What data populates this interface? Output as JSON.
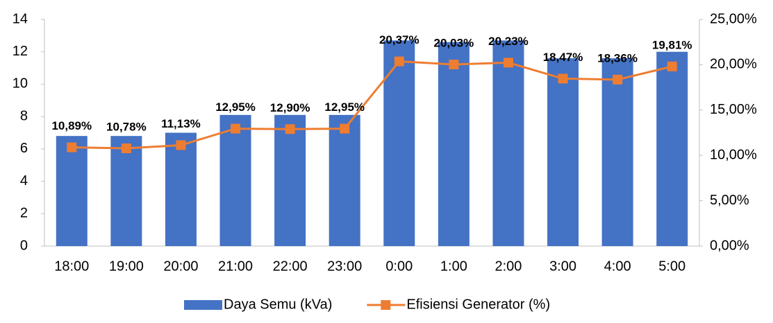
{
  "chart_data": {
    "type": "bar_line",
    "categories": [
      "18:00",
      "19:00",
      "20:00",
      "21:00",
      "22:00",
      "23:00",
      "0:00",
      "1:00",
      "2:00",
      "3:00",
      "4:00",
      "5:00"
    ],
    "series": [
      {
        "name": "Daya Semu (kVa)",
        "type": "bar",
        "color": "#4472c4",
        "values": [
          6.8,
          6.8,
          7.0,
          8.1,
          8.1,
          8.1,
          12.7,
          12.6,
          12.7,
          11.6,
          11.6,
          12.0
        ]
      },
      {
        "name": "Efisiensi Generator (%)",
        "type": "line",
        "axis": "y2",
        "color": "#ed7d31",
        "values": [
          10.89,
          10.78,
          11.13,
          12.95,
          12.9,
          12.95,
          20.37,
          20.03,
          20.23,
          18.47,
          18.36,
          19.81
        ],
        "value_labels": [
          "10,89%",
          "10,78%",
          "11,13%",
          "12,95%",
          "12,90%",
          "12,95%",
          "20,37%",
          "20,03%",
          "20,23%",
          "18,47%",
          "18,36%",
          "19,81%"
        ]
      }
    ],
    "ylim": [
      0,
      14
    ],
    "yticks": [
      0,
      2,
      4,
      6,
      8,
      10,
      12,
      14
    ],
    "y2lim": [
      0,
      25
    ],
    "y2ticks": [
      {
        "value": 0,
        "label": "0,00%"
      },
      {
        "value": 5,
        "label": "5,00%"
      },
      {
        "value": 10,
        "label": "10,00%"
      },
      {
        "value": 15,
        "label": "15,00%"
      },
      {
        "value": 20,
        "label": "20,00%"
      },
      {
        "value": 25,
        "label": "25,00%"
      }
    ],
    "legend": "bottom"
  }
}
